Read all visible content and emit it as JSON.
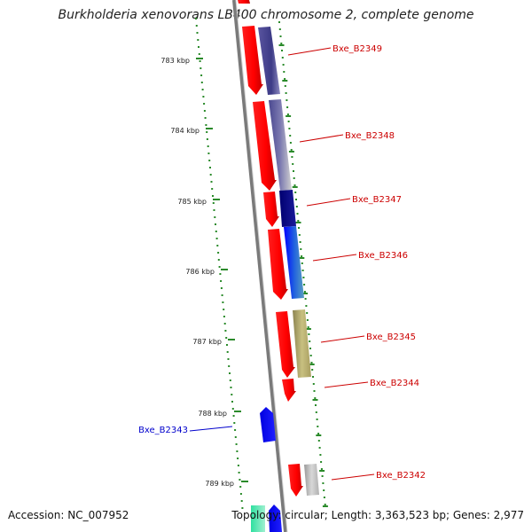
{
  "title": "Burkholderia xenovorans LB400 chromosome 2, complete genome",
  "footer": {
    "accession": "Accession: NC_007952",
    "summary": "Topology: circular; Length: 3,363,523 bp; Genes: 2,977"
  },
  "colors": {
    "backbone": "#7a7a7a",
    "tick": "#2a8a2a",
    "label_forward": "#cc0000",
    "label_reverse": "#0000cc"
  },
  "scale": {
    "unit": "kbp",
    "ticks": [
      {
        "kbp": 783,
        "label": "783 kbp"
      },
      {
        "kbp": 784,
        "label": "784 kbp"
      },
      {
        "kbp": 785,
        "label": "785 kbp"
      },
      {
        "kbp": 786,
        "label": "786 kbp"
      },
      {
        "kbp": 787,
        "label": "787 kbp"
      },
      {
        "kbp": 788,
        "label": "788 kbp"
      },
      {
        "kbp": 789,
        "label": "789 kbp"
      }
    ]
  },
  "genes": [
    {
      "label": "Bxe_B2349",
      "strand": "forward"
    },
    {
      "label": "Bxe_B2348",
      "strand": "forward"
    },
    {
      "label": "Bxe_B2347",
      "strand": "forward"
    },
    {
      "label": "Bxe_B2346",
      "strand": "forward"
    },
    {
      "label": "Bxe_B2345",
      "strand": "forward"
    },
    {
      "label": "Bxe_B2344",
      "strand": "forward"
    },
    {
      "label": "Bxe_B2343",
      "strand": "reverse"
    },
    {
      "label": "Bxe_B2342",
      "strand": "forward"
    }
  ]
}
